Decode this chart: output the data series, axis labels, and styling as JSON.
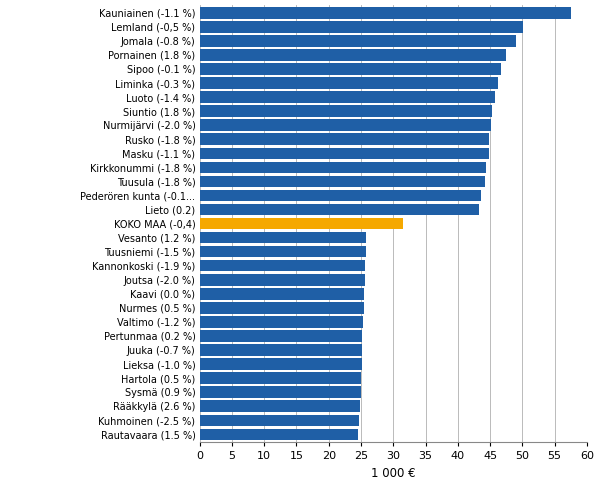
{
  "categories": [
    "Kauniainen (-1.1 %)",
    "Lemland (-0,5 %)",
    "Jomala (-0.8 %)",
    "Pornainen (1.8 %)",
    "Sipoo (-0.1 %)",
    "Liminka (-0.3 %)",
    "Luoto (-1.4 %)",
    "Siuntio (1.8 %)",
    "Nurmijärvi (-2.0 %)",
    "Rusko (-1.8 %)",
    "Masku (-1.1 %)",
    "Kirkkonummi (-1.8 %)",
    "Tuusula (-1.8 %)",
    "Pederören kunta (-0.1...",
    "Lieto (0.2)",
    "KOKO MAA (-0,4)",
    "Vesanto (1.2 %)",
    "Tuusniemi (-1.5 %)",
    "Kannonkoski (-1.9 %)",
    "Joutsa (-2.0 %)",
    "Kaavi (0.0 %)",
    "Nurmes (0.5 %)",
    "Valtimo (-1.2 %)",
    "Pertunmaa (0.2 %)",
    "Juuka (-0.7 %)",
    "Lieksa (-1.0 %)",
    "Hartola (0.5 %)",
    "Sysmä (0.9 %)",
    "Rääkkylä (2.6 %)",
    "Kuhmoinen (-2.5 %)",
    "Rautavaara (1.5 %)"
  ],
  "values": [
    57.5,
    50.1,
    49.0,
    47.5,
    46.7,
    46.2,
    45.7,
    45.3,
    45.1,
    44.9,
    44.8,
    44.4,
    44.2,
    43.6,
    43.3,
    31.5,
    25.8,
    25.7,
    25.6,
    25.55,
    25.5,
    25.4,
    25.3,
    25.2,
    25.15,
    25.1,
    25.05,
    25.0,
    24.8,
    24.7,
    24.5
  ],
  "bar_colors": [
    "#1f5fa6",
    "#1f5fa6",
    "#1f5fa6",
    "#1f5fa6",
    "#1f5fa6",
    "#1f5fa6",
    "#1f5fa6",
    "#1f5fa6",
    "#1f5fa6",
    "#1f5fa6",
    "#1f5fa6",
    "#1f5fa6",
    "#1f5fa6",
    "#1f5fa6",
    "#1f5fa6",
    "#f5a800",
    "#1f5fa6",
    "#1f5fa6",
    "#1f5fa6",
    "#1f5fa6",
    "#1f5fa6",
    "#1f5fa6",
    "#1f5fa6",
    "#1f5fa6",
    "#1f5fa6",
    "#1f5fa6",
    "#1f5fa6",
    "#1f5fa6",
    "#1f5fa6",
    "#1f5fa6",
    "#1f5fa6"
  ],
  "xlabel": "1 000 €",
  "xlim": [
    0,
    60
  ],
  "xticks": [
    0,
    5,
    10,
    15,
    20,
    25,
    30,
    35,
    40,
    45,
    50,
    55,
    60
  ],
  "background_color": "#ffffff",
  "grid_color": "#b0b0b0"
}
